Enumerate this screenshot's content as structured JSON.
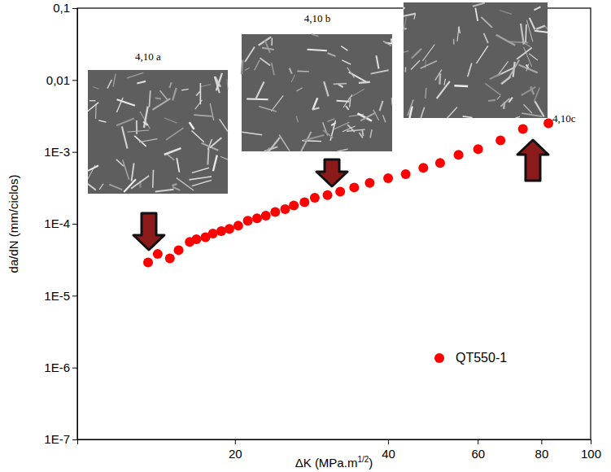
{
  "chart_data": {
    "type": "scatter",
    "log": true,
    "grid": false,
    "legend": "lower right",
    "y_label": "da/dN (mm/ciclos)",
    "x_label": {
      "text": "ΔK (MPa.m",
      "sup": "1/2",
      "after": ")"
    },
    "xlim": [
      9.8,
      100
    ],
    "xticks": [
      20,
      40,
      60,
      80,
      100
    ],
    "ylim": [
      1e-07,
      0.1
    ],
    "yticks": [
      {
        "value": 1e-07,
        "label": "1E-7"
      },
      {
        "value": 1e-06,
        "label": "1E-6"
      },
      {
        "value": 1e-05,
        "label": "1E-5"
      },
      {
        "value": 0.0001,
        "label": "1E-4"
      },
      {
        "value": 0.001,
        "label": "1E-3"
      },
      {
        "value": 0.01,
        "label": "0,01"
      },
      {
        "value": 0.1,
        "label": "0,1"
      }
    ],
    "annotations": [
      {
        "text": "4,10 a"
      },
      {
        "text": "4,10 b"
      },
      {
        "text": "4,10c"
      }
    ],
    "x": [
      13.5,
      14.1,
      14.9,
      15.5,
      16.3,
      16.8,
      17.5,
      18.1,
      18.8,
      19.5,
      20.3,
      21.2,
      22.1,
      23.0,
      24.0,
      25.1,
      26.1,
      27.4,
      28.7,
      30.4,
      32.2,
      34.3,
      36.8,
      40.0,
      43.3,
      46.9,
      50.6,
      55.0,
      60.1,
      66.5,
      73.6,
      82.6
    ],
    "series": [
      {
        "name": "QT550-1",
        "color": "#ff0000",
        "marker": "circle",
        "values": [
          2.9e-05,
          3.8e-05,
          3.3e-05,
          4.3e-05,
          5.6e-05,
          6.1e-05,
          6.5e-05,
          7.3e-05,
          7.9e-05,
          8.5e-05,
          9.4e-05,
          0.00011,
          0.000119,
          0.00013,
          0.000146,
          0.00016,
          0.00018,
          0.0002,
          0.00023,
          0.00025,
          0.00028,
          0.00032,
          0.00037,
          0.00043,
          0.00049,
          0.0006,
          0.0007,
          0.00091,
          0.00109,
          0.00145,
          0.00208,
          0.0025
        ]
      }
    ]
  }
}
